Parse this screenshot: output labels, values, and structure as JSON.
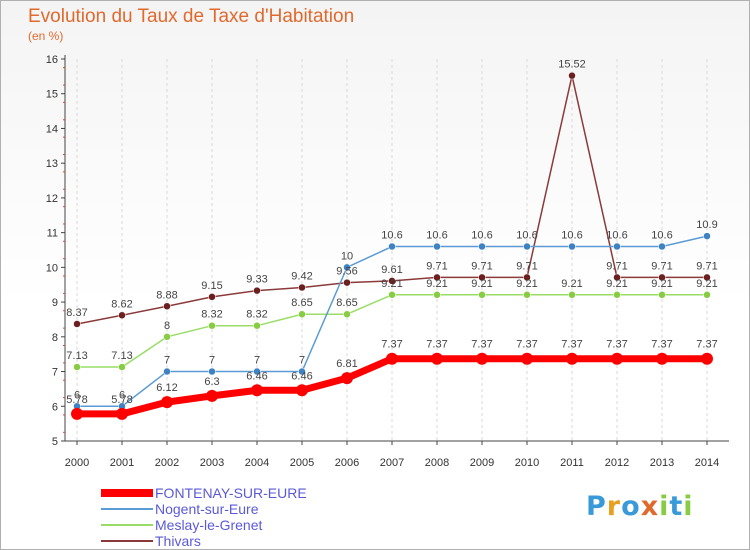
{
  "chart_data": {
    "type": "line",
    "title": "Evolution du Taux de Taxe d'Habitation",
    "subtitle": "(en %)",
    "x": [
      "2000",
      "2001",
      "2002",
      "2003",
      "2004",
      "2005",
      "2006",
      "2007",
      "2008",
      "2009",
      "2010",
      "2011",
      "2012",
      "2013",
      "2014"
    ],
    "ylim": [
      5,
      16
    ],
    "yticks": [
      5,
      6,
      7,
      8,
      9,
      10,
      11,
      12,
      13,
      14,
      15,
      16
    ],
    "grid": "vertical",
    "legend_position": "bottom-left",
    "series": [
      {
        "name": "FONTENAY-SUR-EURE",
        "color": "#ff0000",
        "values": [
          5.78,
          5.78,
          6.12,
          6.3,
          6.46,
          6.46,
          6.81,
          7.37,
          7.37,
          7.37,
          7.37,
          7.37,
          7.37,
          7.37,
          7.37
        ],
        "labels": [
          "5.78",
          "5.78",
          "6.12",
          "6.3",
          "6.46",
          "6.46",
          "6.81",
          "7.37",
          "7.37",
          "7.37",
          "7.37",
          "7.37",
          "7.37",
          "7.37",
          "7.37"
        ]
      },
      {
        "name": "Nogent-sur-Eure",
        "color": "#5b9bd5",
        "marker_color": "#3f82c4",
        "values": [
          6,
          6,
          7,
          7,
          7,
          7,
          10,
          10.6,
          10.6,
          10.6,
          10.6,
          10.6,
          10.6,
          10.6,
          10.9
        ],
        "labels": [
          "6",
          "6",
          "7",
          "7",
          "7",
          "7",
          "10",
          "10.6",
          "10.6",
          "10.6",
          "10.6",
          "10.6",
          "10.6",
          "10.6",
          "10.9"
        ]
      },
      {
        "name": "Meslay-le-Grenet",
        "color": "#99dd66",
        "marker_color": "#88cc44",
        "values": [
          7.13,
          7.13,
          8,
          8.32,
          8.32,
          8.65,
          8.65,
          9.21,
          9.21,
          9.21,
          9.21,
          9.21,
          9.21,
          9.21,
          9.21
        ],
        "labels": [
          "7.13",
          "7.13",
          "8",
          "8.32",
          "8.32",
          "8.65",
          "8.65",
          "9.21",
          "9.21",
          "9.21",
          "9.21",
          "9.21",
          "9.21",
          "9.21",
          "9.21"
        ]
      },
      {
        "name": "Thivars",
        "color": "#8b3a3a",
        "marker_color": "#6b1f1f",
        "values": [
          8.37,
          8.62,
          8.88,
          9.15,
          9.33,
          9.42,
          9.56,
          9.61,
          9.71,
          9.71,
          9.71,
          15.52,
          9.71,
          9.71,
          9.71
        ],
        "labels": [
          "8.37",
          "8.62",
          "8.88",
          "9.15",
          "9.33",
          "9.42",
          "9.56",
          "9.61",
          "9.71",
          "9.71",
          "9.71",
          "15.52",
          "9.71",
          "9.71",
          "9.71"
        ]
      }
    ]
  },
  "logo": {
    "letters": [
      "P",
      "r",
      "o",
      "x",
      "i",
      "t",
      "i"
    ],
    "colors": [
      "#3a9ad9",
      "#e8a020",
      "#3a9ad9",
      "#e06a2e",
      "#88cc44",
      "#3a9ad9",
      "#88cc44"
    ]
  }
}
